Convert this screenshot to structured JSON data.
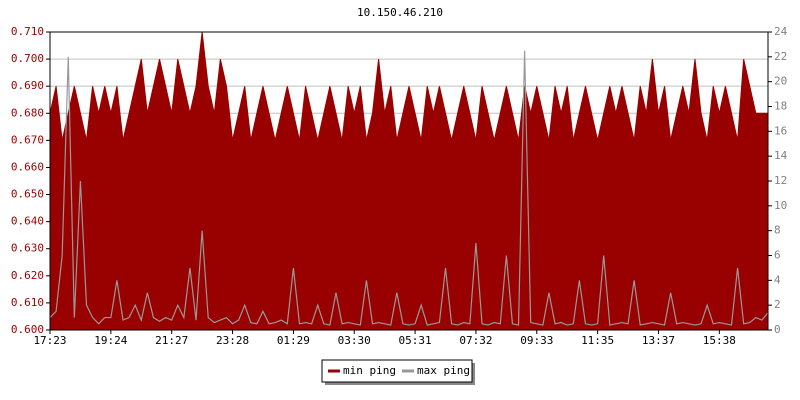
{
  "chart_data": {
    "type": "area_line",
    "title": "10.150.46.210",
    "categories": [
      "17:23",
      null,
      null,
      null,
      null,
      null,
      null,
      null,
      null,
      null,
      "19:24",
      null,
      null,
      null,
      null,
      null,
      null,
      null,
      null,
      null,
      "21:27",
      null,
      null,
      null,
      null,
      null,
      null,
      null,
      null,
      null,
      "23:28",
      null,
      null,
      null,
      null,
      null,
      null,
      null,
      null,
      null,
      "01:29",
      null,
      null,
      null,
      null,
      null,
      null,
      null,
      null,
      null,
      "03:30",
      null,
      null,
      null,
      null,
      null,
      null,
      null,
      null,
      null,
      "05:31",
      null,
      null,
      null,
      null,
      null,
      null,
      null,
      null,
      null,
      "07:32",
      null,
      null,
      null,
      null,
      null,
      null,
      null,
      null,
      null,
      "09:33",
      null,
      null,
      null,
      null,
      null,
      null,
      null,
      null,
      null,
      "11:35",
      null,
      null,
      null,
      null,
      null,
      null,
      null,
      null,
      null,
      "13:37",
      null,
      null,
      null,
      null,
      null,
      null,
      null,
      null,
      null,
      "15:38",
      null,
      null,
      null,
      null,
      null,
      null,
      null,
      null
    ],
    "series": [
      {
        "name": "min ping",
        "color": "#990000",
        "axis": "y",
        "values": [
          0.68,
          0.69,
          0.67,
          0.68,
          0.69,
          0.68,
          0.67,
          0.69,
          0.68,
          0.69,
          0.68,
          0.69,
          0.67,
          0.68,
          0.69,
          0.7,
          0.68,
          0.69,
          0.7,
          0.69,
          0.68,
          0.7,
          0.69,
          0.68,
          0.69,
          0.71,
          0.69,
          0.68,
          0.7,
          0.69,
          0.67,
          0.68,
          0.69,
          0.67,
          0.68,
          0.69,
          0.68,
          0.67,
          0.68,
          0.69,
          0.68,
          0.67,
          0.69,
          0.68,
          0.67,
          0.68,
          0.69,
          0.68,
          0.67,
          0.69,
          0.68,
          0.69,
          0.67,
          0.68,
          0.7,
          0.68,
          0.69,
          0.67,
          0.68,
          0.69,
          0.68,
          0.67,
          0.69,
          0.68,
          0.69,
          0.68,
          0.67,
          0.68,
          0.69,
          0.68,
          0.67,
          0.69,
          0.68,
          0.67,
          0.68,
          0.69,
          0.68,
          0.67,
          0.69,
          0.68,
          0.69,
          0.68,
          0.67,
          0.69,
          0.68,
          0.69,
          0.67,
          0.68,
          0.69,
          0.68,
          0.67,
          0.68,
          0.69,
          0.68,
          0.69,
          0.68,
          0.67,
          0.69,
          0.68,
          0.7,
          0.68,
          0.69,
          0.67,
          0.68,
          0.69,
          0.68,
          0.7,
          0.68,
          0.67,
          0.69,
          0.68,
          0.69,
          0.68,
          0.67,
          0.7,
          0.69,
          0.68,
          0.68,
          0.68
        ]
      },
      {
        "name": "max ping",
        "color": "#999999",
        "axis": "y2",
        "values": [
          1,
          1.5,
          6,
          22,
          1,
          12,
          2,
          1,
          0.5,
          1,
          1,
          4,
          0.8,
          1,
          2,
          0.8,
          3,
          1,
          0.7,
          1,
          0.8,
          2,
          1,
          5,
          0.8,
          8,
          1,
          0.6,
          0.8,
          1,
          0.5,
          0.8,
          2,
          0.6,
          0.5,
          1.5,
          0.5,
          0.6,
          0.8,
          0.5,
          5,
          0.5,
          0.6,
          0.5,
          2,
          0.5,
          0.4,
          3,
          0.5,
          0.6,
          0.5,
          0.4,
          4,
          0.5,
          0.6,
          0.5,
          0.4,
          3,
          0.5,
          0.4,
          0.5,
          2,
          0.4,
          0.5,
          0.6,
          5,
          0.5,
          0.4,
          0.6,
          0.5,
          7,
          0.5,
          0.4,
          0.6,
          0.5,
          6,
          0.5,
          0.4,
          22.5,
          0.6,
          0.5,
          0.4,
          3,
          0.5,
          0.6,
          0.4,
          0.5,
          4,
          0.5,
          0.4,
          0.5,
          6,
          0.4,
          0.5,
          0.6,
          0.5,
          4,
          0.4,
          0.5,
          0.6,
          0.5,
          0.4,
          3,
          0.5,
          0.6,
          0.5,
          0.4,
          0.5,
          2,
          0.5,
          0.6,
          0.5,
          0.4,
          5,
          0.5,
          0.6,
          1,
          0.8,
          1.4
        ]
      }
    ],
    "ylim": [
      0.6,
      0.71
    ],
    "yticks": [
      {
        "value": 0.6,
        "label": "0.600"
      },
      {
        "value": 0.61,
        "label": "0.610"
      },
      {
        "value": 0.62,
        "label": "0.620"
      },
      {
        "value": 0.63,
        "label": "0.630"
      },
      {
        "value": 0.64,
        "label": "0.640"
      },
      {
        "value": 0.65,
        "label": "0.650"
      },
      {
        "value": 0.66,
        "label": "0.660"
      },
      {
        "value": 0.67,
        "label": "0.670"
      },
      {
        "value": 0.68,
        "label": "0.680"
      },
      {
        "value": 0.69,
        "label": "0.690"
      },
      {
        "value": 0.7,
        "label": "0.700"
      },
      {
        "value": 0.71,
        "label": "0.710"
      }
    ],
    "y2lim": [
      0,
      24
    ],
    "y2ticks": [
      0,
      2,
      4,
      6,
      8,
      10,
      12,
      14,
      16,
      18,
      20,
      22,
      24
    ],
    "grid": true
  }
}
